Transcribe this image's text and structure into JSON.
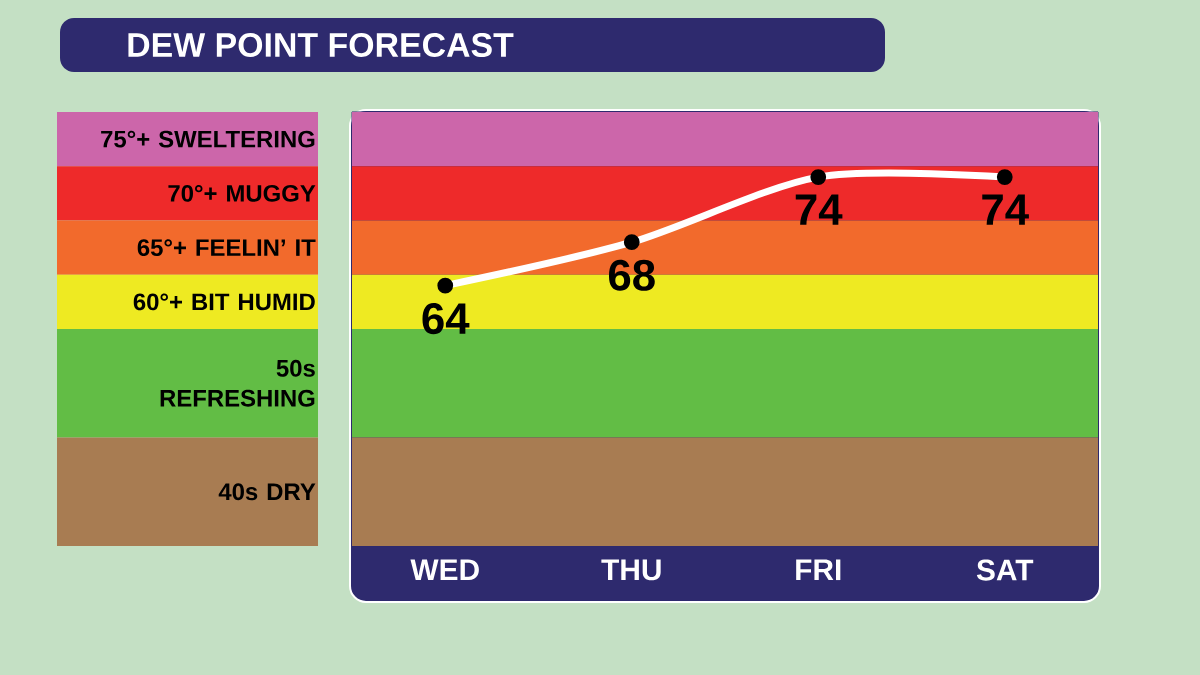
{
  "chart_data": {
    "type": "line",
    "title": "DEW POINT FORECAST",
    "categories": [
      "WED",
      "THU",
      "FRI",
      "SAT"
    ],
    "values": [
      64,
      68,
      74,
      74
    ],
    "color": "#ffffff",
    "marker": "circle",
    "line_style": "solid",
    "data_labels": true,
    "ylim": [
      40,
      80
    ],
    "bands": [
      {
        "axis": "y",
        "from": 75,
        "to": 80,
        "label": "75°+ SWELTERING",
        "color": "#cc66aa"
      },
      {
        "axis": "y",
        "from": 70,
        "to": 75,
        "label": "70°+  MUGGY",
        "color": "#ee2a2a"
      },
      {
        "axis": "y",
        "from": 65,
        "to": 70,
        "label": "65°+   FEELIN’ IT",
        "color": "#f26a2c"
      },
      {
        "axis": "y",
        "from": 60,
        "to": 65,
        "label": "60°+  BIT HUMID",
        "color": "#eeea22"
      },
      {
        "axis": "y",
        "from": 50,
        "to": 60,
        "label": "50s REFRESHING",
        "color": "#62bd45"
      },
      {
        "axis": "y",
        "from": 40,
        "to": 50,
        "label": "40s DRY",
        "color": "#a87c52"
      }
    ]
  }
}
